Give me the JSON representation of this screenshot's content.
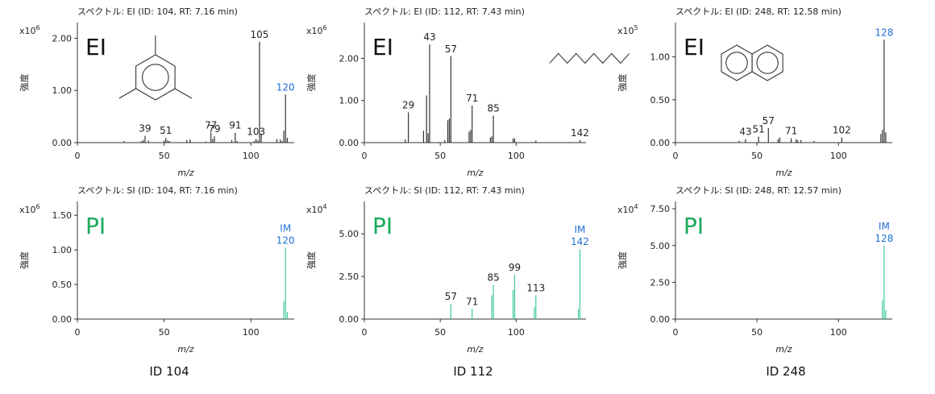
{
  "chart_data": [
    {
      "type": "bar",
      "title": "スペクトル: EI (ID: 104, RT: 7.16 min)",
      "mode_label": "EI",
      "ylabel": "強度",
      "xlabel": "m/z",
      "multiplier": "x10^6",
      "xlim": [
        0,
        125
      ],
      "ylim": [
        0,
        2.3
      ],
      "xticks": [
        "0",
        "50",
        "100"
      ],
      "yticks": [
        "0.00",
        "1.00",
        "2.00"
      ],
      "color": "#333333",
      "label_color": "#222222",
      "highlight_color": "#1f6fd6",
      "mode_color": "#111111",
      "molecule": "mesitylene",
      "peaks": [
        {
          "x": 27,
          "y": 0.03
        },
        {
          "x": 37,
          "y": 0.03
        },
        {
          "x": 38,
          "y": 0.05
        },
        {
          "x": 39,
          "y": 0.13
        },
        {
          "x": 41,
          "y": 0.04
        },
        {
          "x": 50,
          "y": 0.04
        },
        {
          "x": 51,
          "y": 0.09
        },
        {
          "x": 52,
          "y": 0.04
        },
        {
          "x": 53,
          "y": 0.03
        },
        {
          "x": 63,
          "y": 0.05
        },
        {
          "x": 65,
          "y": 0.06
        },
        {
          "x": 74,
          "y": 0.02
        },
        {
          "x": 77,
          "y": 0.19
        },
        {
          "x": 78,
          "y": 0.07
        },
        {
          "x": 79,
          "y": 0.12
        },
        {
          "x": 89,
          "y": 0.05
        },
        {
          "x": 91,
          "y": 0.19
        },
        {
          "x": 92,
          "y": 0.03
        },
        {
          "x": 102,
          "y": 0.03
        },
        {
          "x": 103,
          "y": 0.07
        },
        {
          "x": 104,
          "y": 0.04
        },
        {
          "x": 105,
          "y": 1.93
        },
        {
          "x": 106,
          "y": 0.17
        },
        {
          "x": 115,
          "y": 0.07
        },
        {
          "x": 117,
          "y": 0.06
        },
        {
          "x": 118,
          "y": 0.03
        },
        {
          "x": 119,
          "y": 0.23
        },
        {
          "x": 120,
          "y": 0.92
        },
        {
          "x": 121,
          "y": 0.09
        }
      ],
      "labels": [
        {
          "x": 39,
          "y": 0.13,
          "text": "39",
          "highlight": false
        },
        {
          "x": 51,
          "y": 0.09,
          "text": "51",
          "highlight": false
        },
        {
          "x": 77,
          "y": 0.19,
          "text": "77",
          "highlight": false
        },
        {
          "x": 79,
          "y": 0.12,
          "text": "79",
          "highlight": false
        },
        {
          "x": 91,
          "y": 0.19,
          "text": "91",
          "highlight": false
        },
        {
          "x": 103,
          "y": 0.07,
          "text": "103",
          "highlight": false
        },
        {
          "x": 105,
          "y": 1.93,
          "text": "105",
          "highlight": false
        },
        {
          "x": 120,
          "y": 0.92,
          "text": "120",
          "highlight": true
        }
      ]
    },
    {
      "type": "bar",
      "title": "スペクトル: EI (ID: 112, RT: 7.43 min)",
      "mode_label": "EI",
      "ylabel": "強度",
      "xlabel": "m/z",
      "multiplier": "x10^6",
      "xlim": [
        0,
        146
      ],
      "ylim": [
        0,
        2.85
      ],
      "xticks": [
        "0",
        "50",
        "100"
      ],
      "yticks": [
        "0.00",
        "1.00",
        "2.00"
      ],
      "color": "#333333",
      "label_color": "#222222",
      "highlight_color": "#1f6fd6",
      "mode_color": "#111111",
      "molecule": "decane",
      "peaks": [
        {
          "x": 27,
          "y": 0.08
        },
        {
          "x": 29,
          "y": 0.72
        },
        {
          "x": 39,
          "y": 0.28
        },
        {
          "x": 41,
          "y": 1.12
        },
        {
          "x": 42,
          "y": 0.22
        },
        {
          "x": 43,
          "y": 2.33
        },
        {
          "x": 53,
          "y": 0.06
        },
        {
          "x": 55,
          "y": 0.53
        },
        {
          "x": 56,
          "y": 0.57
        },
        {
          "x": 57,
          "y": 2.05
        },
        {
          "x": 69,
          "y": 0.26
        },
        {
          "x": 70,
          "y": 0.3
        },
        {
          "x": 71,
          "y": 0.88
        },
        {
          "x": 83,
          "y": 0.12
        },
        {
          "x": 84,
          "y": 0.15
        },
        {
          "x": 85,
          "y": 0.64
        },
        {
          "x": 98,
          "y": 0.1
        },
        {
          "x": 99,
          "y": 0.1
        },
        {
          "x": 113,
          "y": 0.05
        },
        {
          "x": 142,
          "y": 0.06
        }
      ],
      "labels": [
        {
          "x": 29,
          "y": 0.72,
          "text": "29",
          "highlight": false
        },
        {
          "x": 43,
          "y": 2.33,
          "text": "43",
          "highlight": false
        },
        {
          "x": 57,
          "y": 2.05,
          "text": "57",
          "highlight": false
        },
        {
          "x": 71,
          "y": 0.88,
          "text": "71",
          "highlight": false
        },
        {
          "x": 85,
          "y": 0.64,
          "text": "85",
          "highlight": false
        },
        {
          "x": 142,
          "y": 0.06,
          "text": "142",
          "highlight": false
        }
      ]
    },
    {
      "type": "bar",
      "title": "スペクトル: EI (ID: 248, RT: 12.58 min)",
      "mode_label": "EI",
      "ylabel": "強度",
      "xlabel": "m/z",
      "multiplier": "x10^5",
      "xlim": [
        0,
        133
      ],
      "ylim": [
        0,
        1.4
      ],
      "xticks": [
        "0",
        "50",
        "100"
      ],
      "yticks": [
        "0.00",
        "0.50",
        "1.00"
      ],
      "color": "#333333",
      "label_color": "#222222",
      "highlight_color": "#1f6fd6",
      "mode_color": "#111111",
      "molecule": "naphthalene",
      "peaks": [
        {
          "x": 39,
          "y": 0.02
        },
        {
          "x": 43,
          "y": 0.04
        },
        {
          "x": 51,
          "y": 0.07
        },
        {
          "x": 57,
          "y": 0.17
        },
        {
          "x": 63,
          "y": 0.04
        },
        {
          "x": 64,
          "y": 0.06
        },
        {
          "x": 71,
          "y": 0.05
        },
        {
          "x": 74,
          "y": 0.04
        },
        {
          "x": 75,
          "y": 0.03
        },
        {
          "x": 77,
          "y": 0.03
        },
        {
          "x": 85,
          "y": 0.02
        },
        {
          "x": 102,
          "y": 0.06
        },
        {
          "x": 126,
          "y": 0.1
        },
        {
          "x": 127,
          "y": 0.15
        },
        {
          "x": 128,
          "y": 1.2
        },
        {
          "x": 129,
          "y": 0.12
        }
      ],
      "labels": [
        {
          "x": 43,
          "y": 0.04,
          "text": "43",
          "highlight": false
        },
        {
          "x": 51,
          "y": 0.07,
          "text": "51",
          "highlight": false
        },
        {
          "x": 57,
          "y": 0.17,
          "text": "57",
          "highlight": false
        },
        {
          "x": 71,
          "y": 0.05,
          "text": "71",
          "highlight": false
        },
        {
          "x": 102,
          "y": 0.06,
          "text": "102",
          "highlight": false
        },
        {
          "x": 128,
          "y": 1.2,
          "text": "128",
          "highlight": true
        }
      ]
    },
    {
      "type": "bar",
      "title": "スペクトル: SI (ID: 104, RT: 7.16 min)",
      "mode_label": "PI",
      "ylabel": "強度",
      "xlabel": "m/z",
      "multiplier": "x10^6",
      "xlim": [
        0,
        125
      ],
      "ylim": [
        0,
        1.7
      ],
      "xticks": [
        "0",
        "50",
        "100"
      ],
      "yticks": [
        "0.00",
        "0.50",
        "1.00",
        "1.50"
      ],
      "color": "#3ec9a0",
      "label_color": "#222222",
      "highlight_color": "#1f6fd6",
      "mode_color": "#1aaa5a",
      "molecule": "",
      "peaks": [
        {
          "x": 119,
          "y": 0.26
        },
        {
          "x": 120,
          "y": 1.03
        },
        {
          "x": 121,
          "y": 0.1
        }
      ],
      "labels": [
        {
          "x": 120,
          "y": 1.03,
          "text": "120",
          "highlight": true,
          "tag": "IM"
        }
      ]
    },
    {
      "type": "bar",
      "title": "スペクトル: SI (ID: 112, RT: 7.43 min)",
      "mode_label": "PI",
      "ylabel": "強度",
      "xlabel": "m/z",
      "multiplier": "x10^4",
      "xlim": [
        0,
        146
      ],
      "ylim": [
        0,
        6.9
      ],
      "xticks": [
        "0",
        "50",
        "100"
      ],
      "yticks": [
        "0.00",
        "2.50",
        "5.00"
      ],
      "color": "#3ec9a0",
      "label_color": "#222222",
      "highlight_color": "#1f6fd6",
      "mode_color": "#1aaa5a",
      "molecule": "",
      "peaks": [
        {
          "x": 57,
          "y": 0.9
        },
        {
          "x": 71,
          "y": 0.6
        },
        {
          "x": 84,
          "y": 1.4
        },
        {
          "x": 85,
          "y": 2.0
        },
        {
          "x": 98,
          "y": 1.7
        },
        {
          "x": 99,
          "y": 2.6
        },
        {
          "x": 112,
          "y": 0.7
        },
        {
          "x": 113,
          "y": 1.4
        },
        {
          "x": 141,
          "y": 0.6
        },
        {
          "x": 142,
          "y": 4.1
        }
      ],
      "labels": [
        {
          "x": 57,
          "y": 0.9,
          "text": "57",
          "highlight": false
        },
        {
          "x": 71,
          "y": 0.6,
          "text": "71",
          "highlight": false
        },
        {
          "x": 85,
          "y": 2.0,
          "text": "85",
          "highlight": false
        },
        {
          "x": 99,
          "y": 2.6,
          "text": "99",
          "highlight": false
        },
        {
          "x": 113,
          "y": 1.4,
          "text": "113",
          "highlight": false
        },
        {
          "x": 142,
          "y": 4.1,
          "text": "142",
          "highlight": true,
          "tag": "IM"
        }
      ]
    },
    {
      "type": "bar",
      "title": "スペクトル: SI (ID: 248, RT: 12.57 min)",
      "mode_label": "PI",
      "ylabel": "強度",
      "xlabel": "m/z",
      "multiplier": "x10^4",
      "xlim": [
        0,
        133
      ],
      "ylim": [
        0,
        8.0
      ],
      "xticks": [
        "0",
        "50",
        "100"
      ],
      "yticks": [
        "0.00",
        "2.50",
        "5.00",
        "7.50"
      ],
      "color": "#3ec9a0",
      "label_color": "#222222",
      "highlight_color": "#1f6fd6",
      "mode_color": "#1aaa5a",
      "molecule": "",
      "peaks": [
        {
          "x": 127,
          "y": 1.3
        },
        {
          "x": 128,
          "y": 5.0
        },
        {
          "x": 129,
          "y": 0.6
        }
      ],
      "labels": [
        {
          "x": 128,
          "y": 5.0,
          "text": "128",
          "highlight": true,
          "tag": "IM"
        }
      ]
    }
  ],
  "captions": [
    "ID 104",
    "ID 112",
    "ID 248"
  ]
}
